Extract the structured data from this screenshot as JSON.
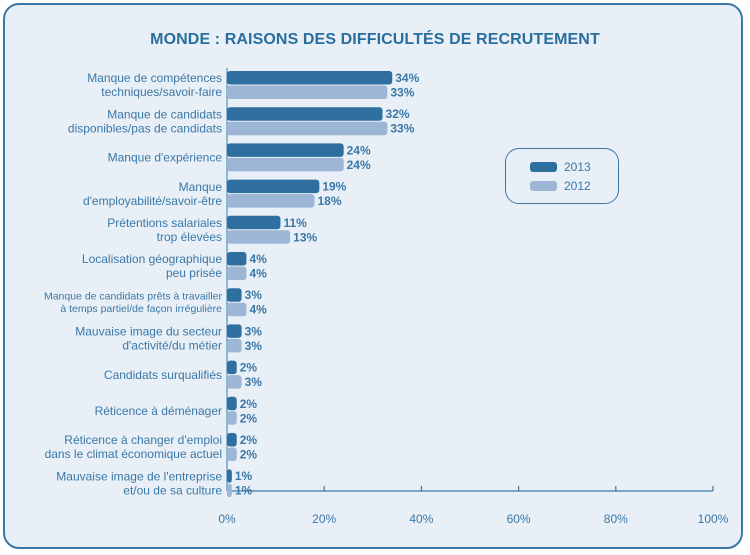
{
  "chart_data": {
    "type": "bar",
    "orientation": "horizontal",
    "title": "MONDE : RAISONS DES DIFFICULTÉS DE RECRUTEMENT",
    "categories": [
      [
        "Manque de compétences",
        "techniques/savoir-faire"
      ],
      [
        "Manque de candidats",
        "disponibles/pas de candidats"
      ],
      [
        "Manque d'expérience"
      ],
      [
        "Manque",
        "d'employabilité/savoir-être"
      ],
      [
        "Prétentions salariales",
        "trop élevées"
      ],
      [
        "Localisation géographique",
        "peu prisée"
      ],
      [
        "Manque de candidats prêts à travailler",
        "à temps partiel/de façon irrégulière"
      ],
      [
        "Mauvaise image du secteur",
        "d'activité/du métier"
      ],
      [
        "Candidats surqualifiés"
      ],
      [
        "Réticence à déménager"
      ],
      [
        "Réticence à changer d'emploi",
        "dans le climat économique actuel"
      ],
      [
        "Mauvaise image de l'entreprise",
        "et/ou de sa culture"
      ]
    ],
    "series": [
      {
        "name": "2013",
        "color": "#2f6f9f",
        "values": [
          34,
          32,
          24,
          19,
          11,
          4,
          3,
          3,
          2,
          2,
          2,
          1
        ]
      },
      {
        "name": "2012",
        "color": "#9db6d6",
        "values": [
          33,
          33,
          24,
          18,
          13,
          4,
          4,
          3,
          3,
          2,
          2,
          1
        ]
      }
    ],
    "value_suffix": "%",
    "xlim": [
      0,
      100
    ],
    "xticks": [
      "0%",
      "20%",
      "40%",
      "60%",
      "80%",
      "100%"
    ],
    "legend_position": "right",
    "grid": false
  }
}
